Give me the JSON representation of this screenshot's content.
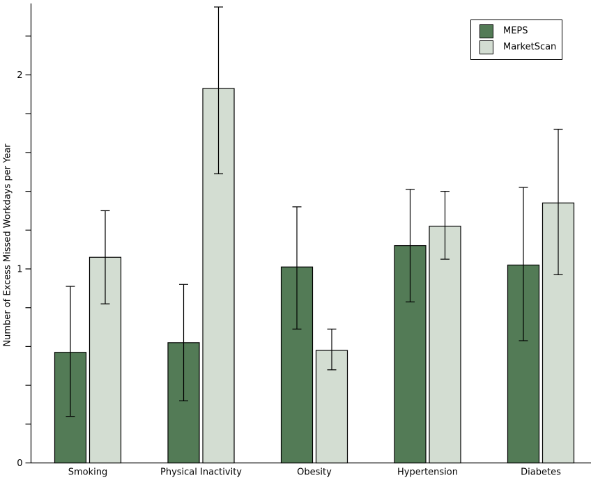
{
  "figure": {
    "background_color": "#ffffff",
    "axis_color": "#000000"
  },
  "chart_data": {
    "type": "bar",
    "title": "",
    "xlabel": "",
    "ylabel": "Number of Excess Missed Workdays per Year",
    "categories": [
      "Smoking",
      "Physical Inactivity",
      "Obesity",
      "Hypertension",
      "Diabetes"
    ],
    "series": [
      {
        "name": "MEPS",
        "color": "#537b56",
        "values": [
          0.57,
          0.62,
          1.01,
          1.12,
          1.02
        ],
        "error_low": [
          0.24,
          0.32,
          0.69,
          0.83,
          0.63
        ],
        "error_high": [
          0.91,
          0.92,
          1.32,
          1.41,
          1.42
        ]
      },
      {
        "name": "MarketScan",
        "color": "#d3ddd2",
        "values": [
          1.06,
          1.93,
          0.58,
          1.22,
          1.34
        ],
        "error_low": [
          0.82,
          1.49,
          0.48,
          1.05,
          0.97
        ],
        "error_high": [
          1.3,
          2.35,
          0.69,
          1.4,
          1.72
        ]
      }
    ],
    "ylim": [
      0,
      2.37
    ],
    "yticks_major": [
      0,
      1,
      2
    ],
    "ytick_step_minor": 0.2,
    "grid": false,
    "error_bars": true,
    "bar_edge_color": "#000000",
    "legend_position": "top-right"
  }
}
